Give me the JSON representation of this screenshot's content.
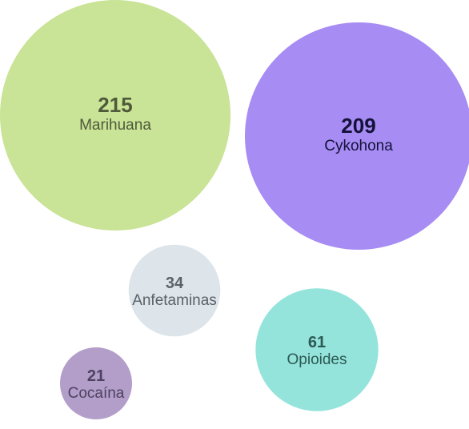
{
  "chart_data": {
    "type": "bubble",
    "title": "",
    "series": [
      {
        "label": "Marihuana",
        "value": 215,
        "color": "#c9e397",
        "text_color": "#4f5a3a"
      },
      {
        "label": "Cykohona",
        "value": 209,
        "color": "#a68cf3",
        "text_color": "#14123a"
      },
      {
        "label": "Anfetaminas",
        "value": 34,
        "color": "#dde5ea",
        "text_color": "#5a6168"
      },
      {
        "label": "Opioides",
        "value": 61,
        "color": "#94e4db",
        "text_color": "#2d5955"
      },
      {
        "label": "Cocaína",
        "value": 21,
        "color": "#b29ec9",
        "text_color": "#4f4160"
      }
    ]
  }
}
